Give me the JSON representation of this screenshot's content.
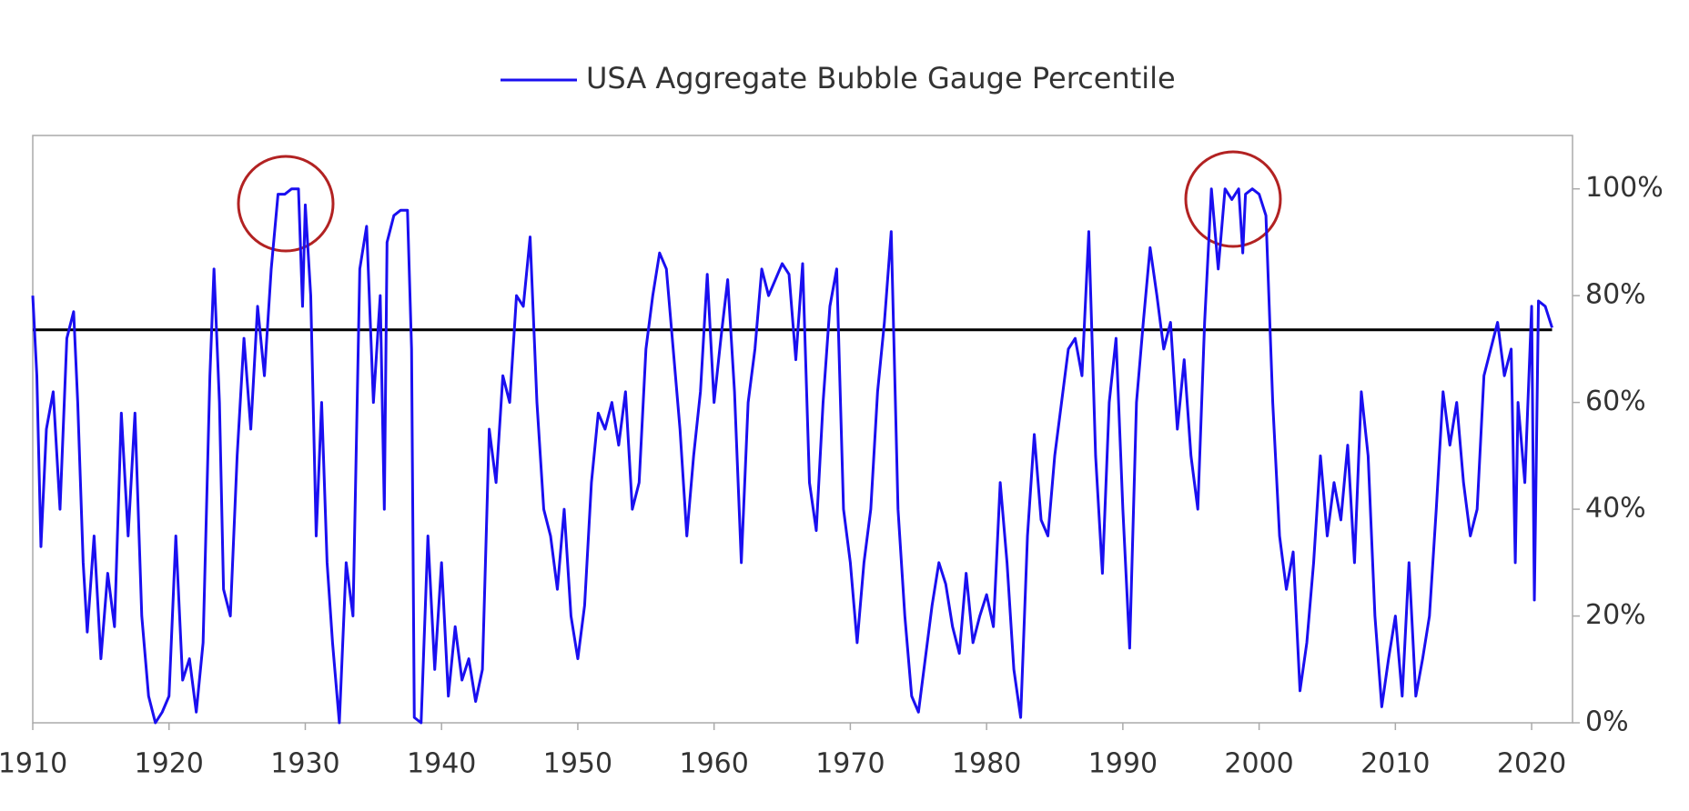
{
  "chart_data": {
    "type": "line",
    "x": [
      1910,
      1910.3,
      1910.6,
      1911,
      1911.5,
      1912,
      1912.5,
      1913,
      1913.3,
      1913.7,
      1914,
      1914.5,
      1915,
      1915.5,
      1916,
      1916.5,
      1917,
      1917.5,
      1918,
      1918.5,
      1919,
      1919.5,
      1920,
      1920.5,
      1921,
      1921.5,
      1922,
      1922.5,
      1923,
      1923.3,
      1923.7,
      1924,
      1924.5,
      1925,
      1925.5,
      1926,
      1926.5,
      1927,
      1927.5,
      1928,
      1928.5,
      1929,
      1929.5,
      1929.8,
      1930,
      1930.4,
      1930.8,
      1931.2,
      1931.6,
      1932,
      1932.5,
      1933,
      1933.5,
      1934,
      1934.5,
      1935,
      1935.5,
      1935.8,
      1936,
      1936.5,
      1937,
      1937.5,
      1937.8,
      1938,
      1938.5,
      1939,
      1939.5,
      1940,
      1940.5,
      1941,
      1941.5,
      1942,
      1942.5,
      1943,
      1943.5,
      1944,
      1944.5,
      1945,
      1945.5,
      1946,
      1946.5,
      1947,
      1947.5,
      1948,
      1948.5,
      1949,
      1949.5,
      1950,
      1950.5,
      1951,
      1951.5,
      1952,
      1952.5,
      1953,
      1953.5,
      1954,
      1954.5,
      1955,
      1955.5,
      1956,
      1956.5,
      1957,
      1957.5,
      1958,
      1958.5,
      1959,
      1959.5,
      1960,
      1960.5,
      1961,
      1961.5,
      1962,
      1962.5,
      1963,
      1963.5,
      1964,
      1964.5,
      1965,
      1965.5,
      1966,
      1966.5,
      1967,
      1967.5,
      1968,
      1968.5,
      1969,
      1969.5,
      1970,
      1970.5,
      1971,
      1971.5,
      1972,
      1972.5,
      1973,
      1973.5,
      1974,
      1974.5,
      1975,
      1975.5,
      1976,
      1976.5,
      1977,
      1977.5,
      1978,
      1978.5,
      1979,
      1979.5,
      1980,
      1980.5,
      1981,
      1981.5,
      1982,
      1982.5,
      1983,
      1983.5,
      1984,
      1984.5,
      1985,
      1985.5,
      1986,
      1986.5,
      1987,
      1987.5,
      1988,
      1988.5,
      1989,
      1989.5,
      1990,
      1990.5,
      1991,
      1991.5,
      1992,
      1992.5,
      1993,
      1993.5,
      1994,
      1994.5,
      1995,
      1995.5,
      1996,
      1996.5,
      1997,
      1997.5,
      1998,
      1998.5,
      1998.8,
      1999,
      1999.5,
      2000,
      2000.5,
      2001,
      2001.5,
      2002,
      2002.5,
      2003,
      2003.5,
      2004,
      2004.5,
      2005,
      2005.5,
      2006,
      2006.5,
      2007,
      2007.5,
      2008,
      2008.5,
      2009,
      2009.5,
      2010,
      2010.5,
      2011,
      2011.5,
      2012,
      2012.5,
      2013,
      2013.5,
      2014,
      2014.5,
      2015,
      2015.5,
      2016,
      2016.5,
      2017,
      2017.5,
      2018,
      2018.5,
      2018.8,
      2019,
      2019.5,
      2020,
      2020.2,
      2020.5,
      2021,
      2021.5
    ],
    "series": [
      {
        "name": "USA Aggregate Bubble Gauge Percentile",
        "color": "#1a0ff0",
        "values": [
          80,
          65,
          33,
          55,
          62,
          40,
          72,
          77,
          60,
          30,
          17,
          35,
          12,
          28,
          18,
          58,
          35,
          58,
          20,
          5,
          0,
          2,
          5,
          35,
          8,
          12,
          2,
          15,
          65,
          85,
          60,
          25,
          20,
          50,
          72,
          55,
          78,
          65,
          85,
          99,
          99,
          100,
          100,
          78,
          97,
          80,
          35,
          60,
          30,
          15,
          0,
          30,
          20,
          85,
          93,
          60,
          80,
          40,
          90,
          95,
          96,
          96,
          70,
          1,
          0,
          35,
          10,
          30,
          5,
          18,
          8,
          12,
          4,
          10,
          55,
          45,
          65,
          60,
          80,
          78,
          91,
          60,
          40,
          35,
          25,
          40,
          20,
          12,
          22,
          45,
          58,
          55,
          60,
          52,
          62,
          40,
          45,
          70,
          80,
          88,
          85,
          70,
          55,
          35,
          50,
          62,
          84,
          60,
          72,
          83,
          62,
          30,
          60,
          70,
          85,
          80,
          83,
          86,
          84,
          68,
          86,
          45,
          36,
          60,
          78,
          85,
          40,
          30,
          15,
          30,
          40,
          62,
          75,
          92,
          40,
          20,
          5,
          2,
          12,
          22,
          30,
          26,
          18,
          13,
          28,
          15,
          20,
          24,
          18,
          45,
          30,
          10,
          1,
          35,
          54,
          38,
          35,
          50,
          60,
          70,
          72,
          65,
          92,
          50,
          28,
          60,
          72,
          40,
          14,
          60,
          75,
          89,
          80,
          70,
          75,
          55,
          68,
          50,
          40,
          75,
          100,
          85,
          100,
          98,
          100,
          88,
          99,
          100,
          99,
          95,
          60,
          35,
          25,
          32,
          6,
          15,
          30,
          50,
          35,
          45,
          38,
          52,
          30,
          62,
          50,
          20,
          3,
          12,
          20,
          5,
          30,
          5,
          12,
          20,
          40,
          62,
          52,
          60,
          45,
          35,
          40,
          65,
          70,
          75,
          65,
          70,
          30,
          60,
          45,
          78,
          23,
          79,
          78,
          74
        ]
      }
    ],
    "reference_line": {
      "value": 73.6,
      "color": "#000000"
    },
    "xlim": [
      1910,
      2023
    ],
    "xticks": [
      1910,
      1920,
      1930,
      1940,
      1950,
      1960,
      1970,
      1980,
      1990,
      2000,
      2010,
      2020
    ],
    "ylim": [
      0,
      110
    ],
    "yticks": [
      {
        "value": 0,
        "label": "0%"
      },
      {
        "value": 20,
        "label": "20%"
      },
      {
        "value": 40,
        "label": "40%"
      },
      {
        "value": 60,
        "label": "60%"
      },
      {
        "value": 80,
        "label": "80%"
      },
      {
        "value": 100,
        "label": "100%"
      }
    ],
    "y_axis_side": "right",
    "legend": "top"
  }
}
